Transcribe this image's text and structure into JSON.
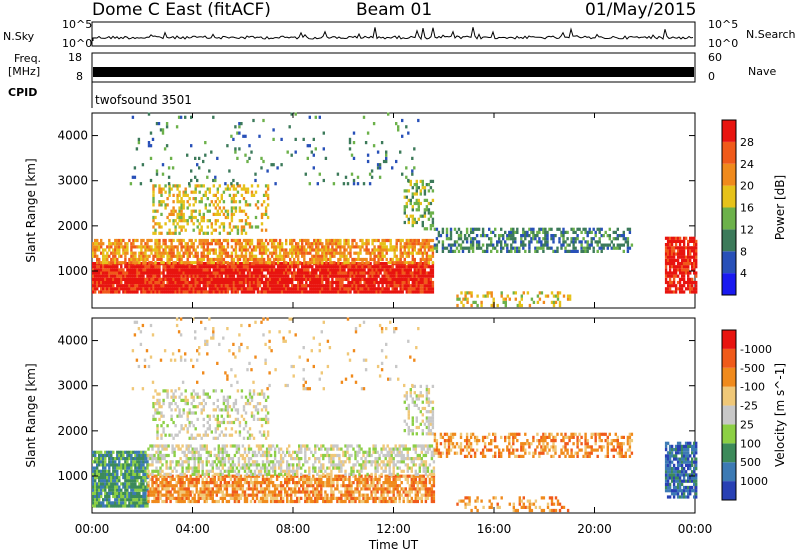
{
  "header": {
    "station": "Dome C East (fitACF)",
    "beam": "Beam 01",
    "date": "01/May/2015"
  },
  "side_labels": {
    "nsky": "N.Sky",
    "freq_line1": "Freq.",
    "freq_line2": "[MHz]",
    "cpid": "CPID",
    "nsearch": "N.Search",
    "nave": "Nave",
    "cpid_name": "twofsound 3501"
  },
  "strip_ticks": {
    "noise_left": [
      "10^5",
      "10^0"
    ],
    "noise_right": [
      "10^5",
      "10^0"
    ],
    "freq_left": [
      "18",
      "8"
    ],
    "freq_right": [
      "60",
      "0"
    ]
  },
  "chart_data": [
    {
      "type": "heatmap",
      "panel": "power",
      "xlabel": "",
      "ylabel": "Slant Range [km]",
      "x_ticks": [
        "00:00",
        "04:00",
        "08:00",
        "12:00",
        "16:00",
        "20:00",
        "00:00"
      ],
      "xlim_hours": [
        0,
        24
      ],
      "ylim": [
        180,
        4500
      ],
      "y_ticks": [
        1000,
        2000,
        3000,
        4000
      ],
      "colorbar": {
        "label": "Power [dB]",
        "tick_labels": [
          "4",
          "8",
          "12",
          "16",
          "20",
          "24",
          "28"
        ],
        "colors": [
          "#1a1af0",
          "#2850b8",
          "#3c7a5a",
          "#6cb14a",
          "#e6c21a",
          "#f08a1c",
          "#f05a1a",
          "#e8140f"
        ]
      },
      "regions": [
        {
          "t0": 0.0,
          "t1": 13.6,
          "r0": 500,
          "r1": 1150,
          "level": 7,
          "density": 0.95
        },
        {
          "t0": 0.0,
          "t1": 13.6,
          "r0": 1150,
          "r1": 1700,
          "level": 5,
          "density": 0.7
        },
        {
          "t0": 2.4,
          "t1": 7.0,
          "r0": 1800,
          "r1": 2900,
          "level": 4,
          "density": 0.35
        },
        {
          "t0": 12.4,
          "t1": 13.6,
          "r0": 1900,
          "r1": 3000,
          "level": 3,
          "density": 0.4
        },
        {
          "t0": 13.6,
          "t1": 21.5,
          "r0": 1400,
          "r1": 1900,
          "level": 2,
          "density": 0.5
        },
        {
          "t0": 22.8,
          "t1": 24.0,
          "r0": 500,
          "r1": 1700,
          "level": 7,
          "density": 0.85
        },
        {
          "t0": 14.5,
          "t1": 19.0,
          "r0": 200,
          "r1": 550,
          "level": 4,
          "density": 0.3
        },
        {
          "t0": 1.5,
          "t1": 13.0,
          "r0": 2900,
          "r1": 4500,
          "level": 2,
          "density": 0.05
        }
      ]
    },
    {
      "type": "heatmap",
      "panel": "velocity",
      "xlabel": "Time UT",
      "ylabel": "Slant Range [km]",
      "x_ticks": [
        "00:00",
        "04:00",
        "08:00",
        "12:00",
        "16:00",
        "20:00",
        "00:00"
      ],
      "xlim_hours": [
        0,
        24
      ],
      "ylim": [
        180,
        4500
      ],
      "y_ticks": [
        1000,
        2000,
        3000,
        4000
      ],
      "colorbar": {
        "label": "Velocity [m s^-1]",
        "tick_labels": [
          "1000",
          "500",
          "100",
          "25",
          "-25",
          "-100",
          "-500",
          "-1000"
        ],
        "colors": [
          "#2840b4",
          "#3c7ab4",
          "#3c8a5a",
          "#8ccf44",
          "#c8c8c8",
          "#f0c878",
          "#f08a1c",
          "#f05a1a",
          "#e8140f"
        ]
      },
      "regions": [
        {
          "t0": 0.0,
          "t1": 2.2,
          "r0": 300,
          "r1": 1500,
          "level": 2,
          "density": 0.9
        },
        {
          "t0": 2.2,
          "t1": 13.6,
          "r0": 400,
          "r1": 1000,
          "level": 6,
          "density": 0.75
        },
        {
          "t0": 2.2,
          "t1": 13.6,
          "r0": 1000,
          "r1": 1700,
          "level": 4,
          "density": 0.55
        },
        {
          "t0": 2.4,
          "t1": 7.0,
          "r0": 1800,
          "r1": 2900,
          "level": 4,
          "density": 0.3
        },
        {
          "t0": 12.4,
          "t1": 13.6,
          "r0": 1900,
          "r1": 3000,
          "level": 4,
          "density": 0.4
        },
        {
          "t0": 13.6,
          "t1": 21.5,
          "r0": 1400,
          "r1": 1900,
          "level": 6,
          "density": 0.45
        },
        {
          "t0": 22.8,
          "t1": 24.0,
          "r0": 500,
          "r1": 1700,
          "level": 1,
          "density": 0.8
        },
        {
          "t0": 14.5,
          "t1": 19.0,
          "r0": 200,
          "r1": 550,
          "level": 6,
          "density": 0.3
        },
        {
          "t0": 1.5,
          "t1": 13.0,
          "r0": 2900,
          "r1": 4500,
          "level": 5,
          "density": 0.05
        }
      ]
    }
  ]
}
